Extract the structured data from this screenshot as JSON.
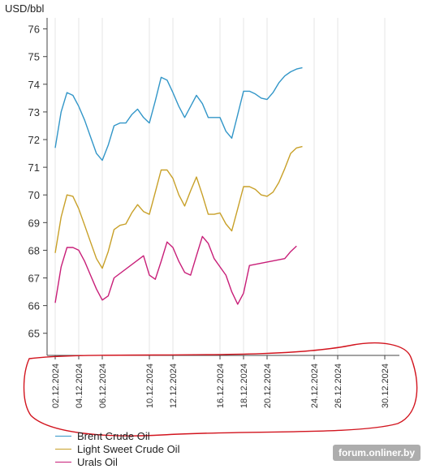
{
  "unit_label": "USD/bbl",
  "watermark": "forum.onliner.by",
  "colors": {
    "brent": "#3296c8",
    "lightsweet": "#c8a028",
    "urals": "#c81e78",
    "axis": "#444444",
    "grid": "#e6e6e6",
    "annotation": "#d2141e"
  },
  "chart_data": {
    "type": "line",
    "ylabel": "USD/bbl",
    "ylim": [
      64.2,
      76.4
    ],
    "yticks": [
      65,
      66,
      67,
      68,
      69,
      70,
      71,
      72,
      73,
      74,
      75,
      76
    ],
    "grid": "vertical",
    "legend_position": "bottom-left",
    "xlim": [
      "2024-12-02",
      "2024-12-31"
    ],
    "x_tick_labels": [
      "02.12.2024",
      "04.12.2024",
      "06.12.2024",
      "10.12.2024",
      "12.12.2024",
      "16.12.2024",
      "18.12.2024",
      "20.12.2024",
      "24.12.2024",
      "26.12.2024",
      "30.12.2024"
    ],
    "series": [
      {
        "name": "Brent Crude Oil",
        "color": "#3296c8",
        "points": [
          [
            "2024-12-02",
            71.7
          ],
          [
            "2024-12-02T12:00",
            73.0
          ],
          [
            "2024-12-03",
            73.7
          ],
          [
            "2024-12-03T12:00",
            73.6
          ],
          [
            "2024-12-04",
            73.2
          ],
          [
            "2024-12-04T12:00",
            72.7
          ],
          [
            "2024-12-05",
            72.1
          ],
          [
            "2024-12-05T12:00",
            71.5
          ],
          [
            "2024-12-06",
            71.25
          ],
          [
            "2024-12-06T12:00",
            71.8
          ],
          [
            "2024-12-07",
            72.5
          ],
          [
            "2024-12-07T12:00",
            72.6
          ],
          [
            "2024-12-08",
            72.6
          ],
          [
            "2024-12-08T12:00",
            72.9
          ],
          [
            "2024-12-09",
            73.1
          ],
          [
            "2024-12-09T12:00",
            72.8
          ],
          [
            "2024-12-10",
            72.6
          ],
          [
            "2024-12-10T12:00",
            73.4
          ],
          [
            "2024-12-11",
            74.25
          ],
          [
            "2024-12-11T12:00",
            74.15
          ],
          [
            "2024-12-12",
            73.7
          ],
          [
            "2024-12-12T12:00",
            73.2
          ],
          [
            "2024-12-13",
            72.8
          ],
          [
            "2024-12-13T12:00",
            73.2
          ],
          [
            "2024-12-14",
            73.6
          ],
          [
            "2024-12-14T12:00",
            73.3
          ],
          [
            "2024-12-15",
            72.8
          ],
          [
            "2024-12-15T12:00",
            72.8
          ],
          [
            "2024-12-16",
            72.8
          ],
          [
            "2024-12-16T12:00",
            72.3
          ],
          [
            "2024-12-17",
            72.05
          ],
          [
            "2024-12-17T12:00",
            72.9
          ],
          [
            "2024-12-18",
            73.75
          ],
          [
            "2024-12-18T12:00",
            73.75
          ],
          [
            "2024-12-19",
            73.65
          ],
          [
            "2024-12-19T12:00",
            73.5
          ],
          [
            "2024-12-20",
            73.45
          ],
          [
            "2024-12-20T12:00",
            73.7
          ],
          [
            "2024-12-21",
            74.05
          ],
          [
            "2024-12-21T12:00",
            74.3
          ],
          [
            "2024-12-22",
            74.45
          ],
          [
            "2024-12-22T12:00",
            74.55
          ],
          [
            "2024-12-23",
            74.6
          ]
        ]
      },
      {
        "name": "Light Sweet Crude Oil",
        "color": "#c8a028",
        "points": [
          [
            "2024-12-02",
            67.9
          ],
          [
            "2024-12-02T12:00",
            69.2
          ],
          [
            "2024-12-03",
            70.0
          ],
          [
            "2024-12-03T12:00",
            69.95
          ],
          [
            "2024-12-04",
            69.5
          ],
          [
            "2024-12-04T12:00",
            68.9
          ],
          [
            "2024-12-05",
            68.3
          ],
          [
            "2024-12-05T12:00",
            67.7
          ],
          [
            "2024-12-06",
            67.35
          ],
          [
            "2024-12-06T12:00",
            67.95
          ],
          [
            "2024-12-07",
            68.75
          ],
          [
            "2024-12-07T12:00",
            68.9
          ],
          [
            "2024-12-08",
            68.95
          ],
          [
            "2024-12-08T12:00",
            69.35
          ],
          [
            "2024-12-09",
            69.65
          ],
          [
            "2024-12-09T12:00",
            69.4
          ],
          [
            "2024-12-10",
            69.3
          ],
          [
            "2024-12-10T12:00",
            70.1
          ],
          [
            "2024-12-11",
            70.9
          ],
          [
            "2024-12-11T12:00",
            70.9
          ],
          [
            "2024-12-12",
            70.6
          ],
          [
            "2024-12-12T12:00",
            70.0
          ],
          [
            "2024-12-13",
            69.6
          ],
          [
            "2024-12-13T12:00",
            70.15
          ],
          [
            "2024-12-14",
            70.65
          ],
          [
            "2024-12-14T12:00",
            70.0
          ],
          [
            "2024-12-15",
            69.3
          ],
          [
            "2024-12-15T12:00",
            69.3
          ],
          [
            "2024-12-16",
            69.35
          ],
          [
            "2024-12-16T12:00",
            68.95
          ],
          [
            "2024-12-17",
            68.7
          ],
          [
            "2024-12-17T12:00",
            69.5
          ],
          [
            "2024-12-18",
            70.3
          ],
          [
            "2024-12-18T12:00",
            70.3
          ],
          [
            "2024-12-19",
            70.2
          ],
          [
            "2024-12-19T12:00",
            70.0
          ],
          [
            "2024-12-20",
            69.95
          ],
          [
            "2024-12-20T12:00",
            70.1
          ],
          [
            "2024-12-21",
            70.45
          ],
          [
            "2024-12-21T12:00",
            70.95
          ],
          [
            "2024-12-22",
            71.5
          ],
          [
            "2024-12-22T12:00",
            71.7
          ],
          [
            "2024-12-23",
            71.75
          ]
        ]
      },
      {
        "name": "Urals Oil",
        "color": "#c81e78",
        "points": [
          [
            "2024-12-02",
            66.1
          ],
          [
            "2024-12-02T12:00",
            67.4
          ],
          [
            "2024-12-03",
            68.1
          ],
          [
            "2024-12-03T12:00",
            68.1
          ],
          [
            "2024-12-04",
            68.0
          ],
          [
            "2024-12-04T12:00",
            67.6
          ],
          [
            "2024-12-05",
            67.1
          ],
          [
            "2024-12-05T12:00",
            66.6
          ],
          [
            "2024-12-06",
            66.2
          ],
          [
            "2024-12-06T12:00",
            66.35
          ],
          [
            "2024-12-07",
            67.0
          ],
          [
            "2024-12-09T12:00",
            67.8
          ],
          [
            "2024-12-10",
            67.1
          ],
          [
            "2024-12-10T12:00",
            66.95
          ],
          [
            "2024-12-11",
            67.6
          ],
          [
            "2024-12-11T12:00",
            68.3
          ],
          [
            "2024-12-12",
            68.1
          ],
          [
            "2024-12-12T12:00",
            67.6
          ],
          [
            "2024-12-13",
            67.2
          ],
          [
            "2024-12-13T12:00",
            67.1
          ],
          [
            "2024-12-14",
            67.8
          ],
          [
            "2024-12-14T12:00",
            68.5
          ],
          [
            "2024-12-15",
            68.25
          ],
          [
            "2024-12-15T12:00",
            67.7
          ],
          [
            "2024-12-16",
            67.4
          ],
          [
            "2024-12-16T12:00",
            67.1
          ],
          [
            "2024-12-17",
            66.5
          ],
          [
            "2024-12-17T12:00",
            66.05
          ],
          [
            "2024-12-18",
            66.45
          ],
          [
            "2024-12-18T12:00",
            67.45
          ],
          [
            "2024-12-21T12:00",
            67.7
          ],
          [
            "2024-12-22",
            67.95
          ],
          [
            "2024-12-22T12:00",
            68.15
          ]
        ]
      }
    ],
    "legend": [
      "Brent Crude Oil",
      "Light Sweet Crude Oil",
      "Urals Oil"
    ]
  }
}
